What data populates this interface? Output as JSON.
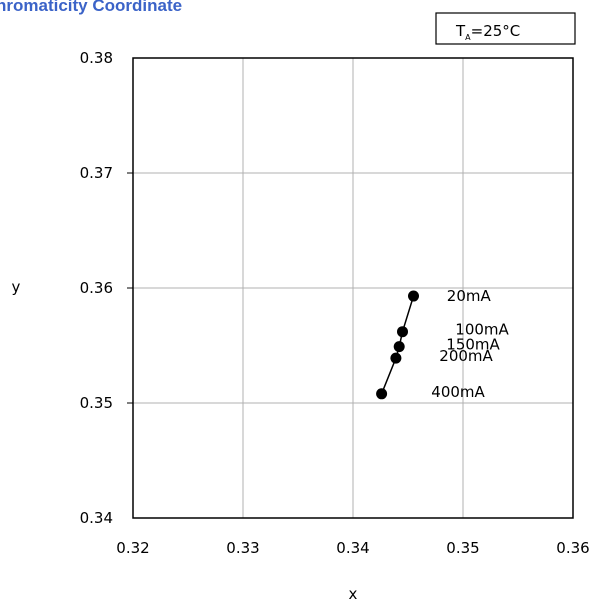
{
  "chart_data": {
    "type": "scatter",
    "title": "hromaticity Coordinate",
    "xlabel": "x",
    "ylabel": "y",
    "xlim": [
      0.32,
      0.36
    ],
    "ylim": [
      0.34,
      0.38
    ],
    "xticks": [
      "0.32",
      "0.33",
      "0.34",
      "0.35",
      "0.36"
    ],
    "yticks": [
      "0.34",
      "0.35",
      "0.36",
      "0.37",
      "0.38"
    ],
    "grid": true,
    "condition": {
      "symbol": "T",
      "subscript": "A",
      "value": "=25°C"
    },
    "points": [
      {
        "label": "20mA",
        "x": 0.3455,
        "y": 0.3593
      },
      {
        "label": "100mA",
        "x": 0.3445,
        "y": 0.3562
      },
      {
        "label": "150mA",
        "x": 0.3442,
        "y": 0.3549
      },
      {
        "label": "200mA",
        "x": 0.3439,
        "y": 0.3539
      },
      {
        "label": "400mA",
        "x": 0.3426,
        "y": 0.3508
      }
    ]
  }
}
